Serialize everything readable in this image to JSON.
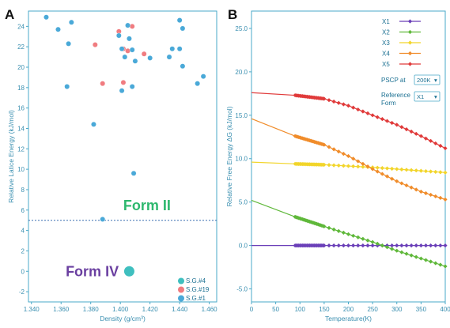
{
  "panels": {
    "a": "A",
    "b": "B"
  },
  "chart_data": [
    {
      "type": "scatter",
      "xlabel": "Density (g/cm³)",
      "ylabel": "Relative Latice Energy (kJ/mol)",
      "xlim": [
        1.338,
        1.465
      ],
      "ylim": [
        -3,
        25.5
      ],
      "xticks": [
        "1.340",
        "1.360",
        "1.380",
        "1.400",
        "1.420",
        "1.440",
        "1.460"
      ],
      "xtick_values": [
        1.34,
        1.36,
        1.38,
        1.4,
        1.42,
        1.44,
        1.46
      ],
      "yticks": [
        -2,
        0,
        2,
        4,
        6,
        8,
        10,
        12,
        14,
        16,
        18,
        20,
        22,
        24
      ],
      "legend_position": "bottom-right",
      "colors": {
        "sg4": "#3fbfbf",
        "sg19": "#f07c80",
        "sg1": "#4aa9d8",
        "cutoff": "#3a6fb0"
      },
      "series": [
        {
          "name": "S.G.#4",
          "color": "#3fbfbf",
          "points": []
        },
        {
          "name": "S.G.#19",
          "color": "#f07c80",
          "points": [
            [
              1.383,
              22.2
            ],
            [
              1.388,
              18.4
            ],
            [
              1.399,
              23.5
            ],
            [
              1.402,
              21.8
            ],
            [
              1.402,
              18.5
            ],
            [
              1.408,
              24.0
            ],
            [
              1.416,
              21.3
            ],
            [
              1.405,
              21.6
            ]
          ]
        },
        {
          "name": "S.G.#1",
          "color": "#4aa9d8",
          "points": [
            [
              1.35,
              24.9
            ],
            [
              1.358,
              23.7
            ],
            [
              1.364,
              18.1
            ],
            [
              1.365,
              22.3
            ],
            [
              1.367,
              24.4
            ],
            [
              1.382,
              14.4
            ],
            [
              1.388,
              5.1
            ],
            [
              1.399,
              23.1
            ],
            [
              1.401,
              21.8
            ],
            [
              1.401,
              17.7
            ],
            [
              1.403,
              21.0
            ],
            [
              1.405,
              24.1
            ],
            [
              1.406,
              22.8
            ],
            [
              1.408,
              21.7
            ],
            [
              1.408,
              18.1
            ],
            [
              1.409,
              9.6
            ],
            [
              1.41,
              20.6
            ],
            [
              1.42,
              20.9
            ],
            [
              1.433,
              21.0
            ],
            [
              1.435,
              21.8
            ],
            [
              1.44,
              21.8
            ],
            [
              1.44,
              24.6
            ],
            [
              1.442,
              20.1
            ],
            [
              1.442,
              23.8
            ],
            [
              1.452,
              18.4
            ],
            [
              1.456,
              19.1
            ]
          ]
        }
      ],
      "cutoff_y": 5.0,
      "annotations": [
        {
          "text": "Form II",
          "x": 1.418,
          "y": 6.0,
          "color": "#2eb86e"
        },
        {
          "text": "Form IV",
          "x": 1.381,
          "y": 0.0,
          "color": "#6a3fa0",
          "marker": [
            1.406,
            0.0
          ],
          "marker_color": "#3fbfbf"
        }
      ]
    },
    {
      "type": "line",
      "xlabel": "Temperature(K)",
      "ylabel": "Relative Free Energy  ΔG (kJ/mol)",
      "xlim": [
        0,
        400
      ],
      "ylim": [
        -6.5,
        27
      ],
      "xticks": [
        0,
        50,
        100,
        150,
        200,
        250,
        300,
        350,
        400
      ],
      "yticks": [
        "-5.0",
        "0.0",
        "5.0",
        "10.0",
        "15.0",
        "20.0",
        "25.0"
      ],
      "ytick_values": [
        -5,
        0,
        5,
        10,
        15,
        20,
        25
      ],
      "legend_position": "top-right",
      "series": [
        {
          "name": "X1",
          "color": "#6a3fb8",
          "x": [
            0,
            90,
            400
          ],
          "y": [
            0.0,
            0.0,
            0.0
          ]
        },
        {
          "name": "X2",
          "color": "#5fb83a",
          "x": [
            0,
            90,
            150,
            200,
            250,
            300,
            350,
            400
          ],
          "y": [
            5.2,
            3.3,
            2.2,
            1.3,
            0.4,
            -0.6,
            -1.5,
            -2.4
          ]
        },
        {
          "name": "X3",
          "color": "#f2d52a",
          "x": [
            0,
            90,
            150,
            200,
            250,
            300,
            350,
            400
          ],
          "y": [
            9.6,
            9.4,
            9.3,
            9.15,
            9.0,
            8.8,
            8.6,
            8.4
          ]
        },
        {
          "name": "X4",
          "color": "#f08c2a",
          "x": [
            0,
            90,
            150,
            200,
            250,
            300,
            350,
            400
          ],
          "y": [
            14.6,
            12.6,
            11.6,
            10.3,
            8.8,
            7.4,
            6.2,
            5.3
          ]
        },
        {
          "name": "X5",
          "color": "#e03a3a",
          "x": [
            0,
            90,
            150,
            200,
            250,
            300,
            350,
            400
          ],
          "y": [
            17.6,
            17.3,
            16.9,
            16.1,
            15.0,
            13.9,
            12.6,
            11.2
          ]
        }
      ],
      "controls": {
        "pscp_label": "PSCP at",
        "pscp_value": "200K",
        "reference_label_1": "Reference",
        "reference_label_2": "Form",
        "reference_value": "X1"
      }
    }
  ]
}
